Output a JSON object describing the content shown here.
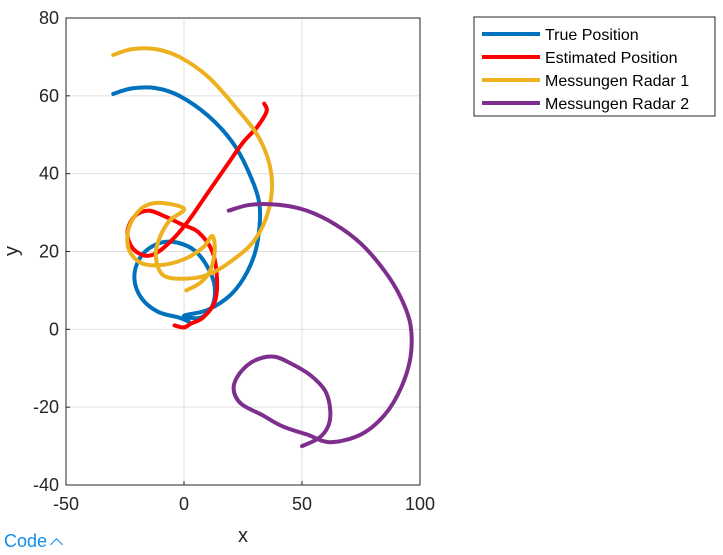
{
  "chart_data": {
    "type": "line",
    "title": "",
    "xlabel": "x",
    "ylabel": "y",
    "xlim": [
      -50,
      100
    ],
    "ylim": [
      -40,
      80
    ],
    "xticks": [
      -50,
      0,
      50,
      100
    ],
    "yticks": [
      -40,
      -20,
      0,
      20,
      40,
      60,
      80
    ],
    "grid": true,
    "legend_position": "outside-top-right",
    "series": [
      {
        "name": "True Position",
        "color": "#0072bd",
        "points": [
          [
            -30,
            60.5
          ],
          [
            -22,
            61.9
          ],
          [
            -12,
            62
          ],
          [
            -2,
            60
          ],
          [
            10,
            55
          ],
          [
            20,
            48.5
          ],
          [
            27,
            41
          ],
          [
            32,
            32
          ],
          [
            31,
            22
          ],
          [
            27,
            15
          ],
          [
            20,
            9
          ],
          [
            10,
            5
          ],
          [
            0,
            3.5
          ],
          [
            7,
            3
          ],
          [
            12,
            6
          ],
          [
            13,
            11
          ],
          [
            10,
            16
          ],
          [
            4,
            20.5
          ],
          [
            -5,
            22.5
          ],
          [
            -13,
            21.5
          ],
          [
            -19,
            18
          ],
          [
            -21,
            13
          ],
          [
            -18,
            8
          ],
          [
            -11,
            4.5
          ],
          [
            -2,
            3
          ],
          [
            2,
            2
          ]
        ]
      },
      {
        "name": "Estimated Position",
        "color": "#ff0000",
        "points": [
          [
            -4,
            1
          ],
          [
            0,
            0.5
          ],
          [
            3,
            1.5
          ],
          [
            8,
            3
          ],
          [
            13,
            7
          ],
          [
            14,
            13
          ],
          [
            12,
            20
          ],
          [
            6,
            25
          ],
          [
            -1,
            27
          ],
          [
            -8,
            29
          ],
          [
            -15,
            30.5
          ],
          [
            -21,
            29
          ],
          [
            -24,
            25
          ],
          [
            -22,
            21
          ],
          [
            -17,
            19
          ],
          [
            -12,
            19.5
          ],
          [
            -5,
            23
          ],
          [
            2,
            28
          ],
          [
            10,
            35
          ],
          [
            18,
            42
          ],
          [
            25,
            48
          ],
          [
            31,
            52
          ],
          [
            35,
            56
          ],
          [
            34,
            58
          ]
        ]
      },
      {
        "name": "Messungen Radar 1",
        "color": "#edb120",
        "points": [
          [
            -30,
            70.5
          ],
          [
            -22,
            72
          ],
          [
            -12,
            72
          ],
          [
            -2,
            70
          ],
          [
            10,
            65
          ],
          [
            22,
            57
          ],
          [
            32,
            49
          ],
          [
            37,
            40
          ],
          [
            36,
            31
          ],
          [
            30,
            23
          ],
          [
            20,
            17.5
          ],
          [
            10,
            14
          ],
          [
            0,
            13
          ],
          [
            -9,
            14
          ],
          [
            -12,
            19
          ],
          [
            -10,
            24
          ],
          [
            -6,
            28
          ],
          [
            0,
            31
          ],
          [
            -10,
            32.5
          ],
          [
            -17,
            31.5
          ],
          [
            -22,
            28
          ],
          [
            -24,
            24
          ],
          [
            -23,
            20
          ],
          [
            -18,
            17
          ],
          [
            -10,
            16.5
          ],
          [
            0,
            18
          ],
          [
            8,
            21
          ],
          [
            12,
            24
          ],
          [
            13,
            20
          ],
          [
            11,
            15
          ],
          [
            7,
            12
          ],
          [
            1,
            10
          ]
        ]
      },
      {
        "name": "Messungen Radar 2",
        "color": "#7e2f8e",
        "points": [
          [
            19,
            30.5
          ],
          [
            28,
            32
          ],
          [
            40,
            32
          ],
          [
            52,
            30.5
          ],
          [
            64,
            27
          ],
          [
            75,
            22
          ],
          [
            85,
            15
          ],
          [
            92,
            8
          ],
          [
            96,
            1
          ],
          [
            96,
            -7
          ],
          [
            92,
            -15
          ],
          [
            85,
            -22
          ],
          [
            75,
            -27
          ],
          [
            62,
            -29
          ],
          [
            52,
            -27
          ],
          [
            42,
            -25
          ],
          [
            33,
            -22
          ],
          [
            24,
            -19
          ],
          [
            21,
            -15
          ],
          [
            24,
            -11
          ],
          [
            30,
            -8
          ],
          [
            38,
            -7
          ],
          [
            46,
            -9
          ],
          [
            54,
            -12
          ],
          [
            60,
            -16
          ],
          [
            62,
            -21
          ],
          [
            61,
            -25
          ],
          [
            57,
            -28
          ],
          [
            50,
            -30
          ]
        ]
      }
    ]
  },
  "footer": {
    "code_label": "Code"
  }
}
